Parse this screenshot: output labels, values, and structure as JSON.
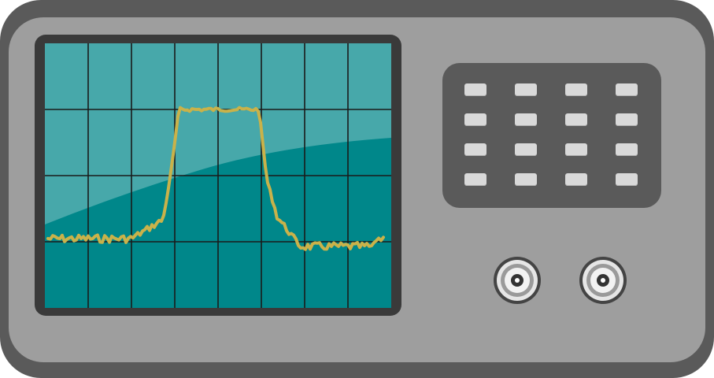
{
  "device": {
    "type": "oscilloscope",
    "colors": {
      "body_outer": "#5a5a5a",
      "body_face": "#9e9e9e",
      "screen": "#00878a",
      "grid": "#1a1a1a",
      "trace": "#c9b24a",
      "key": "#d9d9d9"
    },
    "screen": {
      "grid_columns": 8,
      "grid_rows": 4,
      "trace_shape": "rectangular-pulse"
    },
    "keypad": {
      "rows": 4,
      "columns": 4,
      "key_icon": "keypad-key"
    },
    "connectors": [
      {
        "icon": "bnc-connector-icon"
      },
      {
        "icon": "bnc-connector-icon"
      }
    ]
  }
}
